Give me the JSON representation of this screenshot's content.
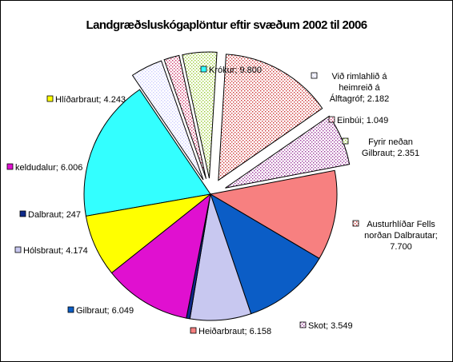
{
  "chart_data": {
    "type": "pie",
    "title": "Landgræðsluskógaplöntur eftir svæðum 2002 til 2006",
    "slices": [
      {
        "lines": [
          "Krókur; 9.800"
        ],
        "value": 9800,
        "color": "#33ffff",
        "pattern": "solid",
        "exploded": false
      },
      {
        "lines": [
          "Við rimlahlið á",
          "heimreið á",
          "Álftagróf; 2.182"
        ],
        "value": 2182,
        "color": "#ccccff",
        "pattern": "dots",
        "exploded": true
      },
      {
        "lines": [
          "Einbúi; 1.049"
        ],
        "value": 1049,
        "color": "#cc3366",
        "pattern": "dots",
        "exploded": true
      },
      {
        "lines": [
          "Fyrir neðan",
          "Gilbraut; 2.351"
        ],
        "value": 2351,
        "color": "#99cc33",
        "pattern": "dots",
        "exploded": true
      },
      {
        "lines": [
          "Austurhlíðar Fells",
          "norðan Dalbrautar;",
          "7.700"
        ],
        "value": 7700,
        "color": "#cc3333",
        "pattern": "dots",
        "exploded": true
      },
      {
        "lines": [
          "Skot; 3.549"
        ],
        "value": 3549,
        "color": "#993399",
        "pattern": "dots",
        "exploded": true
      },
      {
        "lines": [
          "Heiðarbraut; 6.158"
        ],
        "value": 6158,
        "color": "#f78080",
        "pattern": "solid",
        "exploded": false
      },
      {
        "lines": [
          "Gilbraut; 6.049"
        ],
        "value": 6049,
        "color": "#0b5dc6",
        "pattern": "solid",
        "exploded": false
      },
      {
        "lines": [
          "Hólsbraut; 4.174"
        ],
        "value": 4174,
        "color": "#c8c8f0",
        "pattern": "solid",
        "exploded": false
      },
      {
        "lines": [
          "Dalbraut; 247"
        ],
        "value": 247,
        "color": "#0f2a8a",
        "pattern": "solid",
        "exploded": false
      },
      {
        "lines": [
          "keldudalur; 6.006"
        ],
        "value": 6006,
        "color": "#e010d0",
        "pattern": "solid",
        "exploded": false
      },
      {
        "lines": [
          "Hlíðarbraut; 4.243"
        ],
        "value": 4243,
        "color": "#ffff00",
        "pattern": "solid",
        "exploded": false
      }
    ]
  }
}
